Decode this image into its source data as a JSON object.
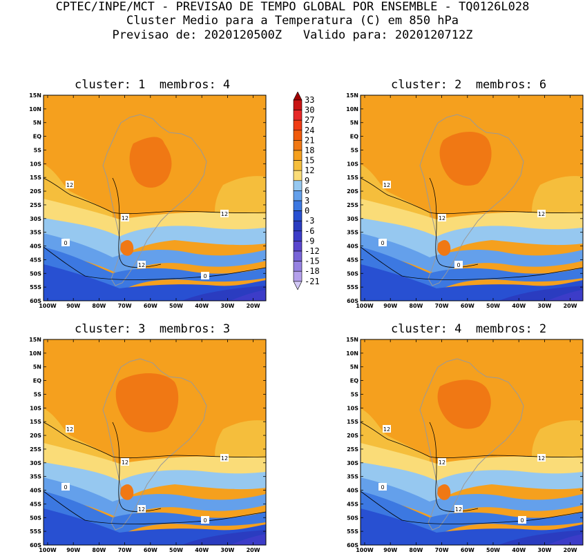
{
  "header": {
    "line1": "CPTEC/INPE/MCT - PREVISAO DE TEMPO GLOBAL POR ENSEMBLE - TQ0126L028",
    "line2": "Cluster Medio para a Temperatura (C) em 850 hPa",
    "line3": "Previsao de: 2020120500Z   Valido para: 2020120712Z"
  },
  "panels": [
    {
      "title": "cluster: 1  membros: 4",
      "cluster": 1,
      "members": 4,
      "contour_labels": [
        "12",
        "12",
        "12",
        "12",
        "0",
        "0"
      ]
    },
    {
      "title": "cluster: 2  membros: 6",
      "cluster": 2,
      "members": 6,
      "contour_labels": [
        "12",
        "12",
        "12",
        "0",
        "0"
      ]
    },
    {
      "title": "cluster: 3  membros: 3",
      "cluster": 3,
      "members": 3,
      "contour_labels": [
        "12",
        "12",
        "12",
        "12",
        "0",
        "0"
      ]
    },
    {
      "title": "cluster: 4  membros: 2",
      "cluster": 4,
      "members": 2,
      "contour_labels": [
        "12",
        "12",
        "12",
        "12",
        "0",
        "0"
      ]
    }
  ],
  "axes": {
    "lat_labels": [
      "15N",
      "10N",
      "5N",
      "EQ",
      "5S",
      "10S",
      "15S",
      "20S",
      "25S",
      "30S",
      "35S",
      "40S",
      "45S",
      "50S",
      "55S",
      "60S"
    ],
    "lon_labels": [
      "100W",
      "90W",
      "80W",
      "70W",
      "60W",
      "50W",
      "40W",
      "30W",
      "20W"
    ],
    "lat_range": [
      -60,
      15
    ],
    "lon_range": [
      -100,
      -13
    ]
  },
  "colorbar": {
    "labels": [
      "33",
      "30",
      "27",
      "24",
      "21",
      "18",
      "15",
      "12",
      "9",
      "6",
      "3",
      "0",
      "-3",
      "-6",
      "-9",
      "-12",
      "-15",
      "-18",
      "-21"
    ],
    "colors": [
      "#a00000",
      "#c81414",
      "#e62828",
      "#f03c14",
      "#f05a0a",
      "#f07814",
      "#f5a01e",
      "#f5be3c",
      "#fadc78",
      "#96c8f0",
      "#64a0eb",
      "#3c78e1",
      "#2850d2",
      "#2a3cc0",
      "#3c3cc8",
      "#5a46cd",
      "#7864d7",
      "#9682e1",
      "#b4a0eb",
      "#d2c8f5"
    ]
  }
}
